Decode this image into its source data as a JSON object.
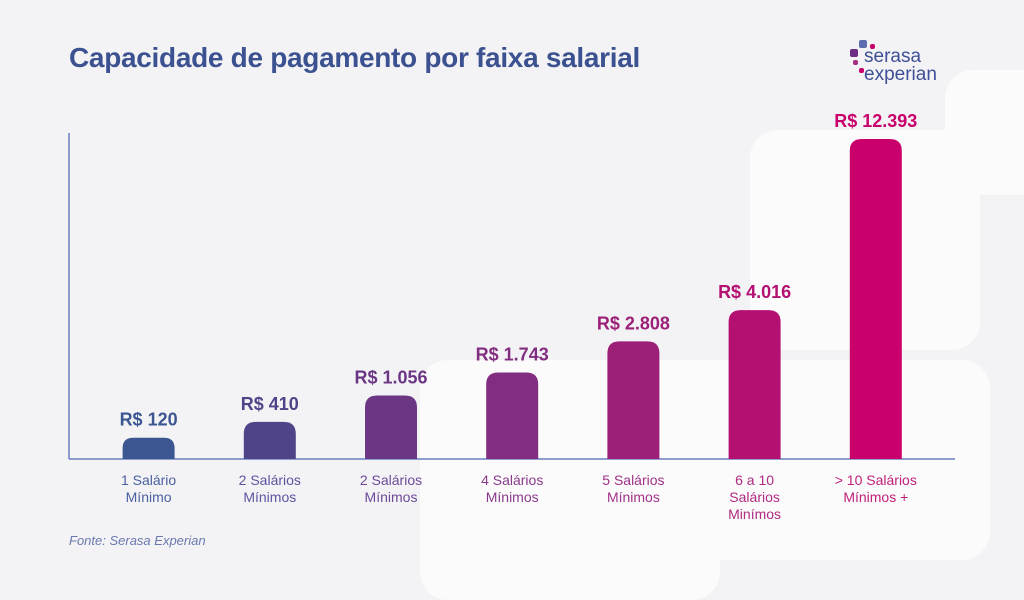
{
  "logo": {
    "line1": "serasa",
    "line2": "experian"
  },
  "source": "Fonte: Serasa Experian",
  "chart_data": {
    "type": "bar",
    "title": "Capacidade de pagamento por faixa salarial",
    "xlabel": "",
    "ylabel": "",
    "categories": [
      [
        "1 Salário",
        "Mínimo"
      ],
      [
        "2 Salários",
        "Mínimos"
      ],
      [
        "2 Salários",
        "Mínimos"
      ],
      [
        "4 Salários",
        "Mínimos"
      ],
      [
        "5 Salários",
        "Mínimos"
      ],
      [
        "6 a 10",
        "Salários",
        "Minímos"
      ],
      [
        "> 10 Salários",
        "Mínimos +"
      ]
    ],
    "values": [
      120,
      410,
      1056,
      1743,
      2808,
      4016,
      12393
    ],
    "value_labels": [
      "R$ 120",
      "R$ 410",
      "R$ 1.056",
      "R$ 1.743",
      "R$ 2.808",
      "R$ 4.016",
      "R$ 12.393"
    ],
    "colors": [
      "#3b5690",
      "#504489",
      "#6b3785",
      "#832d80",
      "#9c1f78",
      "#b31072",
      "#c9006b"
    ],
    "label_colors": [
      "#4a5fa0",
      "#5a55a0",
      "#6d4a98",
      "#8a3a8c",
      "#a03088",
      "#b02a80",
      "#c0207a"
    ],
    "axis_color": "#6b7fbf",
    "grid": false,
    "legend": "none"
  }
}
